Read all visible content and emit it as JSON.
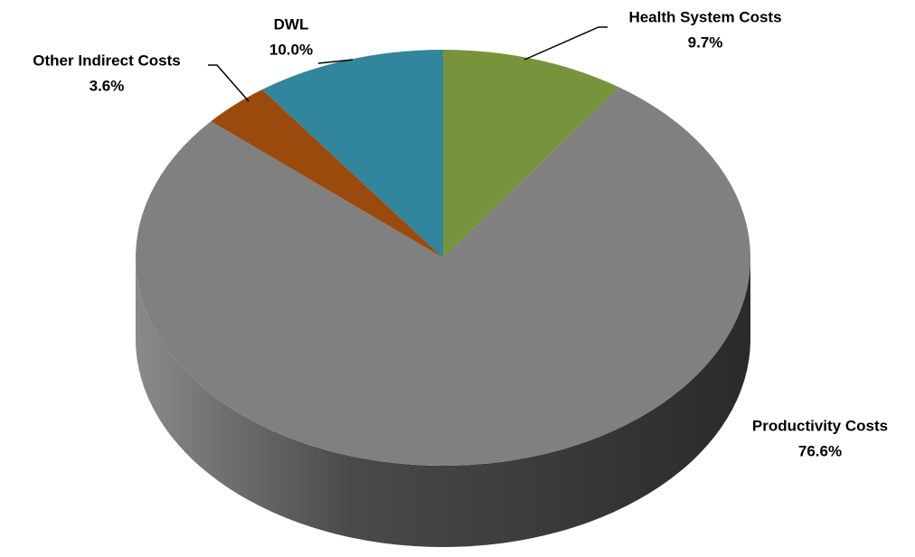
{
  "chart_data": {
    "type": "pie",
    "categories": [
      "Health System Costs",
      "Productivity Costs",
      "Other Indirect Costs",
      "DWL"
    ],
    "values": [
      9.7,
      76.6,
      3.6,
      10.0
    ],
    "value_labels": [
      "9.7%",
      "76.6%",
      "3.6%",
      "10.0%"
    ],
    "colors": [
      "#77933c",
      "#808080",
      "#9b4a0e",
      "#31859c"
    ]
  }
}
